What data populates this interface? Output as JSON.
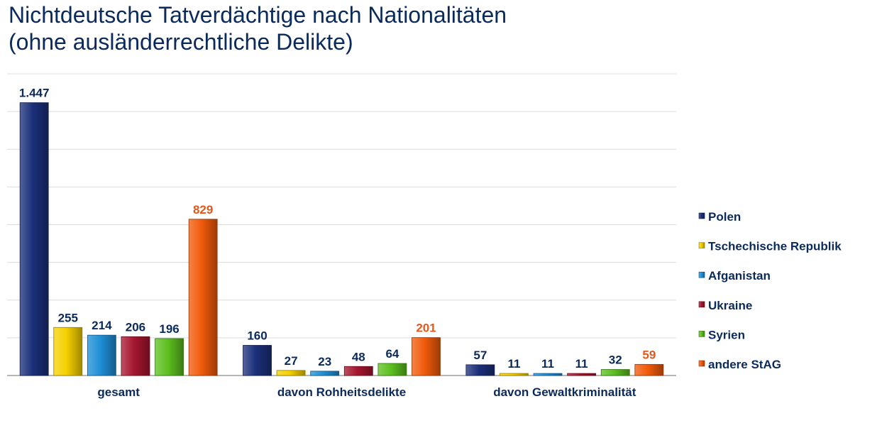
{
  "title_lines": [
    "Nichtdeutsche Tatverdächtige nach Nationalitäten",
    "(ohne ausländerrechtliche Delikte)"
  ],
  "chart_data": {
    "type": "bar",
    "title": "Nichtdeutsche Tatverdächtige nach Nationalitäten (ohne ausländerrechtliche Delikte)",
    "categories": [
      "gesamt",
      "davon Rohheitsdelikte",
      "davon Gewaltkriminalität"
    ],
    "series": [
      {
        "name": "Polen",
        "values": [
          1447,
          160,
          57
        ],
        "labels": [
          "1.447",
          "160",
          "57"
        ],
        "color": "#1b2f7a",
        "label_color": "#0b2a5c"
      },
      {
        "name": "Tschechische Republik",
        "values": [
          255,
          27,
          11
        ],
        "labels": [
          "255",
          "27",
          "11"
        ],
        "color": "#f5d000",
        "label_color": "#0b2a5c"
      },
      {
        "name": "Afganistan",
        "values": [
          214,
          23,
          11
        ],
        "labels": [
          "214",
          "23",
          "11"
        ],
        "color": "#1e8fd6",
        "label_color": "#0b2a5c"
      },
      {
        "name": "Ukraine",
        "values": [
          206,
          48,
          11
        ],
        "labels": [
          "206",
          "48",
          "11"
        ],
        "color": "#a5162e",
        "label_color": "#0b2a5c"
      },
      {
        "name": "Syrien",
        "values": [
          196,
          64,
          32
        ],
        "labels": [
          "196",
          "64",
          "32"
        ],
        "color": "#5cbf1e",
        "label_color": "#0b2a5c"
      },
      {
        "name": "andere StAG",
        "values": [
          829,
          201,
          59
        ],
        "labels": [
          "829",
          "201",
          "59"
        ],
        "color": "#f05a0a",
        "label_color": "#e0581c"
      }
    ],
    "ylim": [
      0,
      1600
    ],
    "grid": true,
    "legend": "right"
  }
}
